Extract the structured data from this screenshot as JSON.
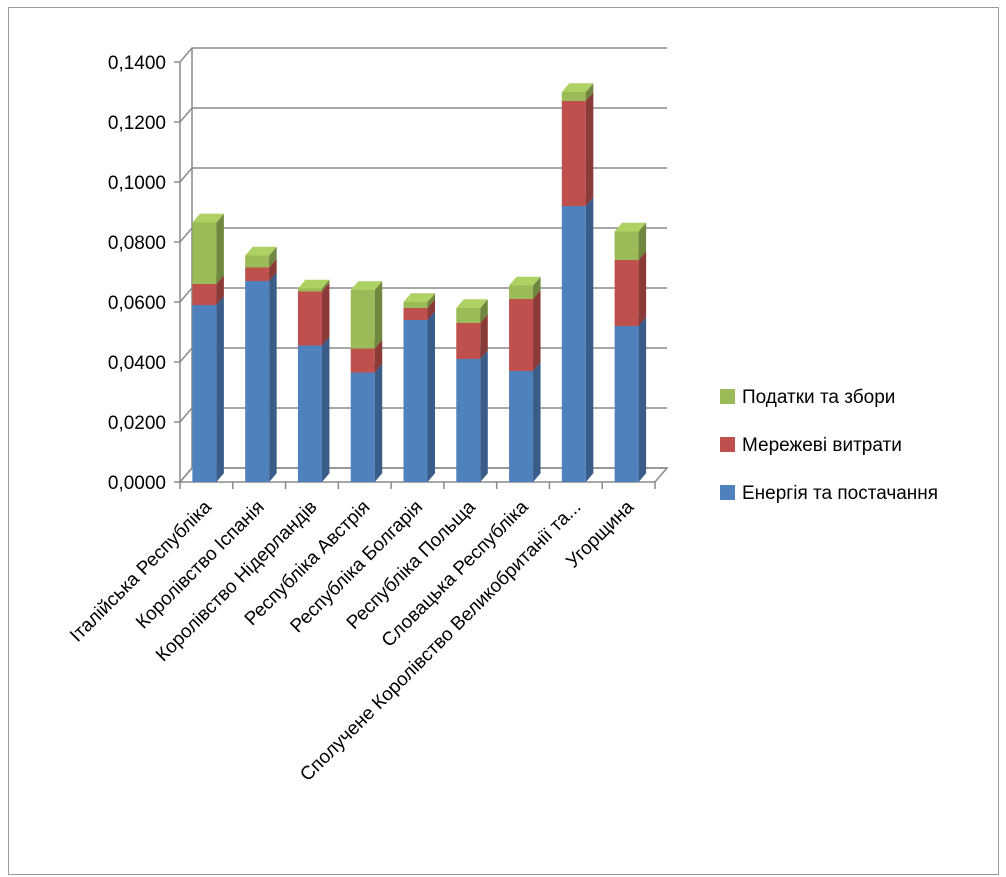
{
  "chart_data": {
    "type": "bar",
    "stacked": true,
    "style": "3d-column",
    "title": "",
    "xlabel": "",
    "ylabel": "",
    "ylim": [
      0,
      0.14
    ],
    "ytick_values": [
      0,
      0.02,
      0.04,
      0.06,
      0.08,
      0.1,
      0.12,
      0.14
    ],
    "yticks": [
      "0,0000",
      "0,0200",
      "0,0400",
      "0,0600",
      "0,0800",
      "0,1000",
      "0,1200",
      "0,1400"
    ],
    "grid": true,
    "legend_position": "right",
    "categories": [
      "Італійська Республіка",
      "Королівство Іспанія",
      "Королівство Нідерландів",
      "Республіка Австрія",
      "Республіка Болгарія",
      "Республіка Польща",
      "Словацька Республіка",
      "Сполучене Королівство Великобританії та...",
      "Угорщина"
    ],
    "series": [
      {
        "name": "Енергія та постачання",
        "color": "#4f81bd",
        "values": [
          0.059,
          0.067,
          0.0455,
          0.0365,
          0.054,
          0.041,
          0.037,
          0.092,
          0.052
        ]
      },
      {
        "name": "Мережеві витрати",
        "color": "#c0504d",
        "values": [
          0.007,
          0.0045,
          0.018,
          0.008,
          0.004,
          0.012,
          0.024,
          0.035,
          0.022
        ]
      },
      {
        "name": "Податки та збори",
        "color": "#9bbb59",
        "values": [
          0.0205,
          0.004,
          0.001,
          0.0195,
          0.002,
          0.005,
          0.0045,
          0.003,
          0.0095
        ]
      }
    ]
  }
}
